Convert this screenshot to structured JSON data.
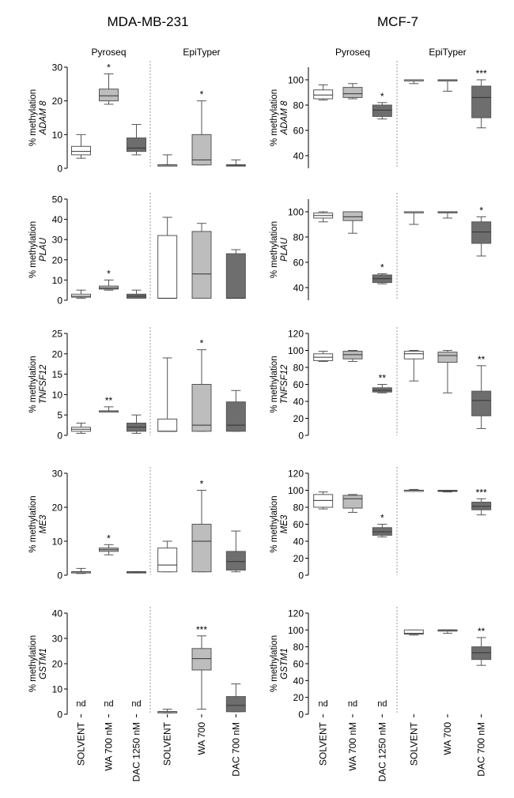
{
  "figure": {
    "column_titles": [
      "MDA-MB-231",
      "MCF-7"
    ],
    "method_labels": [
      "Pyroseq",
      "EpiTyper"
    ],
    "ylabel_prefix": "% methylation",
    "group_labels": [
      "SOLVENT",
      "WA 700 nM",
      "DAC 1250 nM",
      "SOLVENT",
      "WA 700",
      "DAC 700 nM"
    ],
    "colors": {
      "solvent": "#ffffff",
      "wa": "#bdbdbd",
      "dac": "#6e6e6e",
      "stroke": "#555555",
      "divider": "#9a9a9a"
    }
  },
  "chart_data": [
    {
      "type": "box",
      "cell_line": "MDA-MB-231",
      "gene": "ADAM 8",
      "ylabel": "% methylation ADAM 8",
      "ylim": [
        0,
        30
      ],
      "yticks": [
        0,
        10,
        20,
        30
      ],
      "groups": [
        {
          "label": "SOLVENT",
          "method": "Pyroseq",
          "min": 3,
          "q1": 4,
          "median": 5,
          "q3": 6.5,
          "max": 10,
          "sig": ""
        },
        {
          "label": "WA 700 nM",
          "method": "Pyroseq",
          "min": 19,
          "q1": 20,
          "median": 21.5,
          "q3": 23.5,
          "max": 28,
          "sig": "*"
        },
        {
          "label": "DAC 1250 nM",
          "method": "Pyroseq",
          "min": 4,
          "q1": 5,
          "median": 6,
          "q3": 9,
          "max": 13,
          "sig": ""
        },
        {
          "label": "SOLVENT",
          "method": "EpiTyper",
          "min": 1,
          "q1": 1,
          "median": 1,
          "q3": 1,
          "max": 4,
          "sig": ""
        },
        {
          "label": "WA 700",
          "method": "EpiTyper",
          "min": 1,
          "q1": 1,
          "median": 2.5,
          "q3": 10,
          "max": 20,
          "sig": "*"
        },
        {
          "label": "DAC 700 nM",
          "method": "EpiTyper",
          "min": 1,
          "q1": 1,
          "median": 1,
          "q3": 1,
          "max": 2.5,
          "sig": ""
        }
      ]
    },
    {
      "type": "box",
      "cell_line": "MCF-7",
      "gene": "ADAM 8",
      "ylabel": "% methylation ADAM 8",
      "ylim": [
        30,
        110
      ],
      "yticks": [
        40,
        60,
        80,
        100
      ],
      "groups": [
        {
          "label": "SOLVENT",
          "method": "Pyroseq",
          "min": 84,
          "q1": 85,
          "median": 88,
          "q3": 92,
          "max": 96,
          "sig": ""
        },
        {
          "label": "WA 700 nM",
          "method": "Pyroseq",
          "min": 85,
          "q1": 86,
          "median": 89,
          "q3": 94,
          "max": 97,
          "sig": ""
        },
        {
          "label": "DAC 1250 nM",
          "method": "Pyroseq",
          "min": 69,
          "q1": 71,
          "median": 76,
          "q3": 80,
          "max": 82,
          "sig": "*"
        },
        {
          "label": "SOLVENT",
          "method": "EpiTyper",
          "min": 97,
          "q1": 100,
          "median": 100,
          "q3": 100,
          "max": 100,
          "sig": ""
        },
        {
          "label": "WA 700",
          "method": "EpiTyper",
          "min": 91,
          "q1": 100,
          "median": 100,
          "q3": 100,
          "max": 100,
          "sig": ""
        },
        {
          "label": "DAC 700 nM",
          "method": "EpiTyper",
          "min": 62,
          "q1": 70,
          "median": 86,
          "q3": 95,
          "max": 100,
          "sig": "***"
        }
      ]
    },
    {
      "type": "box",
      "cell_line": "MDA-MB-231",
      "gene": "PLAU",
      "ylabel": "% methylation PLAU",
      "ylim": [
        0,
        50
      ],
      "yticks": [
        0,
        10,
        20,
        30,
        40,
        50
      ],
      "groups": [
        {
          "label": "SOLVENT",
          "method": "Pyroseq",
          "min": 1,
          "q1": 1.5,
          "median": 2,
          "q3": 3,
          "max": 5,
          "sig": ""
        },
        {
          "label": "WA 700 nM",
          "method": "Pyroseq",
          "min": 5,
          "q1": 5.5,
          "median": 6,
          "q3": 7,
          "max": 10,
          "sig": "*"
        },
        {
          "label": "DAC 1250 nM",
          "method": "Pyroseq",
          "min": 1,
          "q1": 1,
          "median": 2,
          "q3": 3,
          "max": 5,
          "sig": ""
        },
        {
          "label": "SOLVENT",
          "method": "EpiTyper",
          "min": 1,
          "q1": 1,
          "median": 1,
          "q3": 32,
          "max": 41,
          "sig": ""
        },
        {
          "label": "WA 700",
          "method": "EpiTyper",
          "min": 1,
          "q1": 1,
          "median": 13,
          "q3": 34,
          "max": 38,
          "sig": ""
        },
        {
          "label": "DAC 700 nM",
          "method": "EpiTyper",
          "min": 1,
          "q1": 1,
          "median": 1,
          "q3": 23,
          "max": 25,
          "sig": ""
        }
      ]
    },
    {
      "type": "box",
      "cell_line": "MCF-7",
      "gene": "PLAU",
      "ylabel": "% methylation PLAU",
      "ylim": [
        30,
        110
      ],
      "yticks": [
        40,
        60,
        80,
        100
      ],
      "groups": [
        {
          "label": "SOLVENT",
          "method": "Pyroseq",
          "min": 92,
          "q1": 95,
          "median": 97,
          "q3": 99,
          "max": 100,
          "sig": ""
        },
        {
          "label": "WA 700 nM",
          "method": "Pyroseq",
          "min": 83,
          "q1": 93,
          "median": 96,
          "q3": 100,
          "max": 100,
          "sig": ""
        },
        {
          "label": "DAC 1250 nM",
          "method": "Pyroseq",
          "min": 43,
          "q1": 44,
          "median": 47,
          "q3": 50,
          "max": 51,
          "sig": "*"
        },
        {
          "label": "SOLVENT",
          "method": "EpiTyper",
          "min": 90,
          "q1": 100,
          "median": 100,
          "q3": 100,
          "max": 100,
          "sig": ""
        },
        {
          "label": "WA 700",
          "method": "EpiTyper",
          "min": 95,
          "q1": 100,
          "median": 100,
          "q3": 100,
          "max": 100,
          "sig": ""
        },
        {
          "label": "DAC 700 nM",
          "method": "EpiTyper",
          "min": 65,
          "q1": 75,
          "median": 84,
          "q3": 92,
          "max": 96,
          "sig": "*"
        }
      ]
    },
    {
      "type": "box",
      "cell_line": "MDA-MB-231",
      "gene": "TNFSF12",
      "ylabel": "% methylation TNFSF12",
      "ylim": [
        0,
        25
      ],
      "yticks": [
        0,
        5,
        10,
        15,
        20,
        25
      ],
      "groups": [
        {
          "label": "SOLVENT",
          "method": "Pyroseq",
          "min": 0.5,
          "q1": 1,
          "median": 1.5,
          "q3": 2,
          "max": 3,
          "sig": ""
        },
        {
          "label": "WA 700 nM",
          "method": "Pyroseq",
          "min": 6,
          "q1": 6,
          "median": 6,
          "q3": 6,
          "max": 7,
          "sig": "**"
        },
        {
          "label": "DAC 1250 nM",
          "method": "Pyroseq",
          "min": 0.5,
          "q1": 1,
          "median": 2,
          "q3": 3,
          "max": 5,
          "sig": ""
        },
        {
          "label": "SOLVENT",
          "method": "EpiTyper",
          "min": 1,
          "q1": 1,
          "median": 1,
          "q3": 4,
          "max": 19,
          "sig": ""
        },
        {
          "label": "WA 700",
          "method": "EpiTyper",
          "min": 1,
          "q1": 1,
          "median": 2.5,
          "q3": 12.5,
          "max": 21,
          "sig": "*"
        },
        {
          "label": "DAC 700 nM",
          "method": "EpiTyper",
          "min": 1,
          "q1": 1,
          "median": 2.5,
          "q3": 8.2,
          "max": 11,
          "sig": ""
        }
      ]
    },
    {
      "type": "box",
      "cell_line": "MCF-7",
      "gene": "TNFSF12",
      "ylabel": "% methylation TNFSF12",
      "ylim": [
        0,
        120
      ],
      "yticks": [
        0,
        20,
        40,
        60,
        80,
        100,
        120
      ],
      "groups": [
        {
          "label": "SOLVENT",
          "method": "Pyroseq",
          "min": 87,
          "q1": 88,
          "median": 92,
          "q3": 96,
          "max": 99,
          "sig": ""
        },
        {
          "label": "WA 700 nM",
          "method": "Pyroseq",
          "min": 87,
          "q1": 90,
          "median": 95,
          "q3": 99,
          "max": 100,
          "sig": ""
        },
        {
          "label": "DAC 1250 nM",
          "method": "Pyroseq",
          "min": 50,
          "q1": 51,
          "median": 53,
          "q3": 56,
          "max": 60,
          "sig": "**"
        },
        {
          "label": "SOLVENT",
          "method": "EpiTyper",
          "min": 64,
          "q1": 90,
          "median": 96,
          "q3": 99,
          "max": 100,
          "sig": ""
        },
        {
          "label": "WA 700",
          "method": "EpiTyper",
          "min": 50,
          "q1": 86,
          "median": 94,
          "q3": 98,
          "max": 100,
          "sig": ""
        },
        {
          "label": "DAC 700 nM",
          "method": "EpiTyper",
          "min": 8,
          "q1": 23,
          "median": 41,
          "q3": 52,
          "max": 82,
          "sig": "**"
        }
      ]
    },
    {
      "type": "box",
      "cell_line": "MDA-MB-231",
      "gene": "ME3",
      "ylabel": "% methylation ME3",
      "ylim": [
        0,
        30
      ],
      "yticks": [
        0,
        10,
        20,
        30
      ],
      "groups": [
        {
          "label": "SOLVENT",
          "method": "Pyroseq",
          "min": 0.5,
          "q1": 1,
          "median": 1,
          "q3": 1,
          "max": 2,
          "sig": ""
        },
        {
          "label": "WA 700 nM",
          "method": "Pyroseq",
          "min": 6,
          "q1": 7,
          "median": 7.5,
          "q3": 8,
          "max": 9,
          "sig": "*"
        },
        {
          "label": "DAC 1250 nM",
          "method": "Pyroseq",
          "min": 1,
          "q1": 1,
          "median": 1,
          "q3": 1,
          "max": 1,
          "sig": ""
        },
        {
          "label": "SOLVENT",
          "method": "EpiTyper",
          "min": 1,
          "q1": 1,
          "median": 3,
          "q3": 8,
          "max": 10,
          "sig": ""
        },
        {
          "label": "WA 700",
          "method": "EpiTyper",
          "min": 1,
          "q1": 1,
          "median": 10,
          "q3": 15,
          "max": 25,
          "sig": "*"
        },
        {
          "label": "DAC 700 nM",
          "method": "EpiTyper",
          "min": 1,
          "q1": 1.5,
          "median": 4,
          "q3": 7,
          "max": 13,
          "sig": ""
        }
      ]
    },
    {
      "type": "box",
      "cell_line": "MCF-7",
      "gene": "ME3",
      "ylabel": "% methylation ME3",
      "ylim": [
        0,
        120
      ],
      "yticks": [
        0,
        20,
        40,
        60,
        80,
        100,
        120
      ],
      "groups": [
        {
          "label": "SOLVENT",
          "method": "Pyroseq",
          "min": 78,
          "q1": 80,
          "median": 88,
          "q3": 95,
          "max": 98,
          "sig": ""
        },
        {
          "label": "WA 700 nM",
          "method": "Pyroseq",
          "min": 74,
          "q1": 79,
          "median": 90,
          "q3": 94,
          "max": 95,
          "sig": ""
        },
        {
          "label": "DAC 1250 nM",
          "method": "Pyroseq",
          "min": 45,
          "q1": 47,
          "median": 51,
          "q3": 56,
          "max": 60,
          "sig": "*"
        },
        {
          "label": "SOLVENT",
          "method": "EpiTyper",
          "min": 99,
          "q1": 100,
          "median": 100,
          "q3": 100,
          "max": 101,
          "sig": ""
        },
        {
          "label": "WA 700",
          "method": "EpiTyper",
          "min": 98,
          "q1": 99,
          "median": 99,
          "q3": 100,
          "max": 100,
          "sig": ""
        },
        {
          "label": "DAC 700 nM",
          "method": "EpiTyper",
          "min": 71,
          "q1": 77,
          "median": 81,
          "q3": 86,
          "max": 90,
          "sig": "***"
        }
      ]
    },
    {
      "type": "box",
      "cell_line": "MDA-MB-231",
      "gene": "GSTM1",
      "ylabel": "% methylation GSTM1",
      "ylim": [
        0,
        40
      ],
      "yticks": [
        0,
        10,
        20,
        30,
        40
      ],
      "groups": [
        {
          "label": "SOLVENT",
          "method": "Pyroseq",
          "nd": "nd",
          "sig": ""
        },
        {
          "label": "WA 700 nM",
          "method": "Pyroseq",
          "nd": "nd",
          "sig": ""
        },
        {
          "label": "DAC 1250 nM",
          "method": "Pyroseq",
          "nd": "nd",
          "sig": ""
        },
        {
          "label": "SOLVENT",
          "method": "EpiTyper",
          "min": 0.5,
          "q1": 1,
          "median": 1,
          "q3": 1,
          "max": 2,
          "sig": ""
        },
        {
          "label": "WA 700",
          "method": "EpiTyper",
          "min": 2,
          "q1": 17.5,
          "median": 22,
          "q3": 26,
          "max": 31,
          "sig": "***"
        },
        {
          "label": "DAC 700 nM",
          "method": "EpiTyper",
          "min": 1,
          "q1": 1,
          "median": 3.5,
          "q3": 7,
          "max": 12,
          "sig": ""
        }
      ]
    },
    {
      "type": "box",
      "cell_line": "MCF-7",
      "gene": "GSTM1",
      "ylabel": "% methylation GSTM1",
      "ylim": [
        0,
        120
      ],
      "yticks": [
        0,
        20,
        40,
        60,
        80,
        100,
        120
      ],
      "groups": [
        {
          "label": "SOLVENT",
          "method": "Pyroseq",
          "nd": "nd",
          "sig": ""
        },
        {
          "label": "WA 700 nM",
          "method": "Pyroseq",
          "nd": "nd",
          "sig": ""
        },
        {
          "label": "DAC 1250 nM",
          "method": "Pyroseq",
          "nd": "nd",
          "sig": ""
        },
        {
          "label": "SOLVENT",
          "method": "EpiTyper",
          "min": 94,
          "q1": 95,
          "median": 96,
          "q3": 100,
          "max": 100,
          "sig": ""
        },
        {
          "label": "WA 700",
          "method": "EpiTyper",
          "min": 96,
          "q1": 99,
          "median": 100,
          "q3": 100,
          "max": 100,
          "sig": ""
        },
        {
          "label": "DAC 700 nM",
          "method": "EpiTyper",
          "min": 58,
          "q1": 65,
          "median": 73,
          "q3": 80,
          "max": 91,
          "sig": "**"
        }
      ]
    }
  ]
}
